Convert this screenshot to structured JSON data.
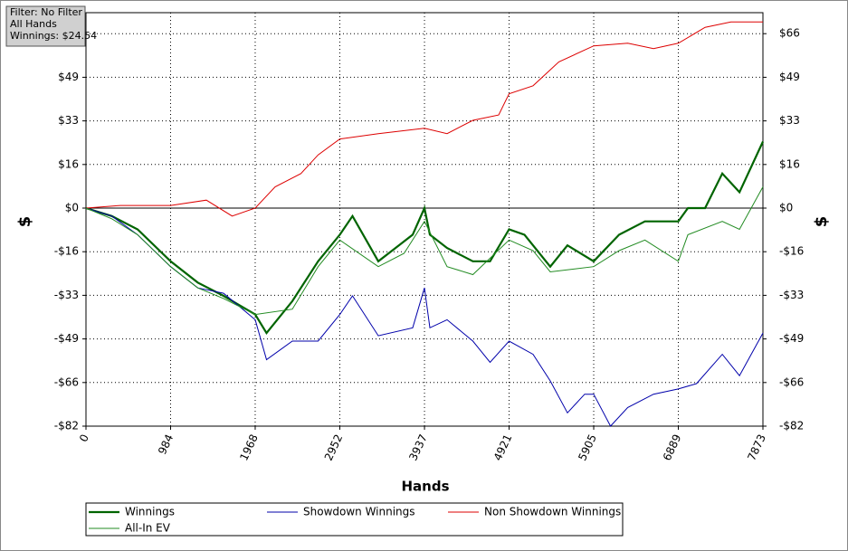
{
  "chart_data": {
    "type": "line",
    "annotations": [
      "Filter: No Filter",
      "All Hands",
      "Winnings: $24.54"
    ],
    "xlabel": "Hands",
    "ylabel": "$",
    "xlim": [
      0,
      7873
    ],
    "xticks": [
      0,
      984,
      1968,
      2952,
      3937,
      4921,
      5905,
      6889,
      7873
    ],
    "ylim": [
      -82,
      73.5
    ],
    "yticks": [
      {
        "value": -82,
        "label": "-$82"
      },
      {
        "value": -65.6,
        "label": "-$66"
      },
      {
        "value": -49.2,
        "label": "-$49"
      },
      {
        "value": -32.8,
        "label": "-$33"
      },
      {
        "value": -16.4,
        "label": "-$16"
      },
      {
        "value": 0,
        "label": "$0"
      },
      {
        "value": 16.4,
        "label": "$16"
      },
      {
        "value": 32.8,
        "label": "$33"
      },
      {
        "value": 49.2,
        "label": "$49"
      },
      {
        "value": 65.6,
        "label": "$66"
      }
    ],
    "grid": true,
    "legend": "bottom",
    "series": [
      {
        "name": "Winnings",
        "color": "#006400",
        "width": 2.2,
        "x": [
          0,
          300,
          600,
          984,
          1300,
          1600,
          1968,
          2100,
          2400,
          2700,
          2952,
          3100,
          3400,
          3600,
          3800,
          3937,
          4000,
          4200,
          4500,
          4700,
          4921,
          5100,
          5400,
          5600,
          5905,
          6200,
          6500,
          6889,
          7000,
          7200,
          7400,
          7600,
          7873
        ],
        "values": [
          0,
          -3,
          -8,
          -20,
          -28,
          -33,
          -40,
          -47,
          -35,
          -20,
          -10,
          -3,
          -20,
          -15,
          -10,
          0,
          -10,
          -15,
          -20,
          -20,
          -8,
          -10,
          -22,
          -14,
          -20,
          -10,
          -5,
          -5,
          0,
          0,
          13,
          6,
          25
        ]
      },
      {
        "name": "Showdown Winnings",
        "color": "#0000aa",
        "width": 1,
        "x": [
          0,
          300,
          600,
          984,
          1300,
          1600,
          1968,
          2100,
          2400,
          2700,
          2952,
          3100,
          3400,
          3800,
          3937,
          4000,
          4200,
          4500,
          4700,
          4921,
          5200,
          5400,
          5600,
          5800,
          5905,
          6100,
          6300,
          6600,
          6889,
          7100,
          7400,
          7600,
          7873
        ],
        "values": [
          0,
          -3,
          -10,
          -22,
          -30,
          -32,
          -42,
          -57,
          -50,
          -50,
          -40,
          -33,
          -48,
          -45,
          -30,
          -45,
          -42,
          -50,
          -58,
          -50,
          -55,
          -65,
          -77,
          -70,
          -70,
          -82,
          -75,
          -70,
          -68,
          -66,
          -55,
          -63,
          -47
        ]
      },
      {
        "name": "Non Showdown Winnings",
        "color": "#dd0000",
        "width": 1,
        "x": [
          0,
          400,
          984,
          1400,
          1700,
          1968,
          2200,
          2500,
          2700,
          2952,
          3400,
          3937,
          4200,
          4500,
          4800,
          4921,
          5200,
          5500,
          5905,
          6300,
          6600,
          6889,
          7200,
          7500,
          7873
        ],
        "values": [
          0,
          1,
          1,
          3,
          -3,
          0,
          8,
          13,
          20,
          26,
          28,
          30,
          28,
          33,
          35,
          43,
          46,
          55,
          61,
          62,
          60,
          62,
          68,
          70,
          70
        ]
      },
      {
        "name": "All-In EV",
        "color": "#228b22",
        "width": 1,
        "x": [
          0,
          300,
          600,
          984,
          1300,
          1600,
          1968,
          2400,
          2700,
          2952,
          3400,
          3700,
          3937,
          4200,
          4500,
          4921,
          5200,
          5400,
          5905,
          6200,
          6500,
          6889,
          7000,
          7400,
          7600,
          7873
        ],
        "values": [
          0,
          -4,
          -10,
          -22,
          -30,
          -34,
          -40,
          -38,
          -22,
          -12,
          -22,
          -17,
          -5,
          -22,
          -25,
          -12,
          -16,
          -24,
          -22,
          -16,
          -12,
          -20,
          -10,
          -5,
          -8,
          8
        ]
      }
    ]
  }
}
